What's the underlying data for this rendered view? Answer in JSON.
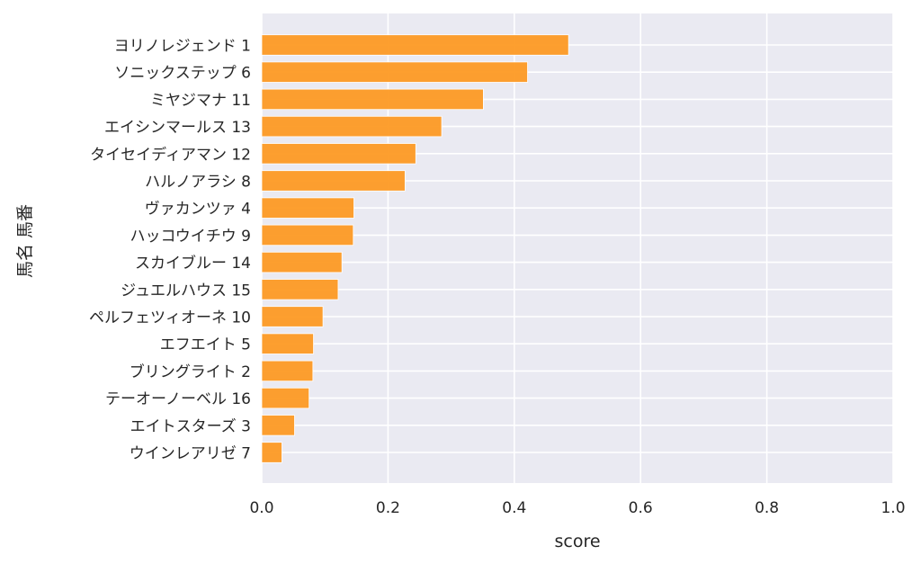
{
  "chart_data": {
    "type": "bar",
    "orientation": "horizontal",
    "title": "",
    "xlabel": "score",
    "ylabel": "馬名 馬番",
    "xlim": [
      0,
      1.0
    ],
    "xticks": [
      "0.0",
      "0.2",
      "0.4",
      "0.6",
      "0.8",
      "1.0"
    ],
    "grid": true,
    "bar_color": "#fd9a24",
    "background_color": "#eaeaf2",
    "categories": [
      "ヨリノレジェンド 1",
      "ソニックステップ 6",
      "ミヤジマナ 11",
      "エイシンマールス 13",
      "タイセイディアマン 12",
      "ハルノアラシ 8",
      "ヴァカンツァ 4",
      "ハッコウイチウ 9",
      "スカイブルー 14",
      "ジュエルハウス 15",
      "ペルフェツィオーネ 10",
      "エフエイト 5",
      "ブリングライト 2",
      "テーオーノーベル 16",
      "エイトスターズ 3",
      "ウインレアリゼ 7"
    ],
    "values": [
      0.486,
      0.421,
      0.351,
      0.285,
      0.244,
      0.227,
      0.146,
      0.145,
      0.127,
      0.121,
      0.097,
      0.082,
      0.081,
      0.075,
      0.052,
      0.032
    ]
  }
}
